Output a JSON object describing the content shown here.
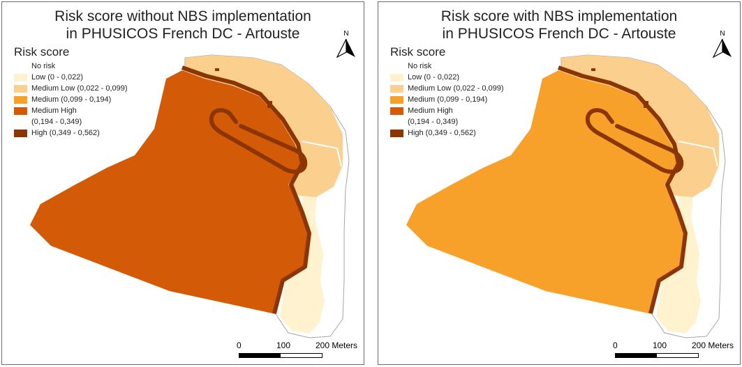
{
  "colors": {
    "no_risk": "#ffffff",
    "low": "#fff3cf",
    "medium_low": "#fbd08e",
    "medium": "#f7a12a",
    "medium_high": "#d35a07",
    "high": "#8b3502",
    "outline": "#a5a5a5"
  },
  "maps": [
    {
      "title_line1": "Risk score without NBS implementation",
      "title_line2": "in PHUSICOS French DC - Artouste",
      "main_class": "medium_high"
    },
    {
      "title_line1": "Risk score with NBS implementation",
      "title_line2": "in PHUSICOS French DC - Artouste",
      "main_class": "medium"
    }
  ],
  "legend": {
    "title": "Risk score",
    "items": [
      {
        "label": "No risk",
        "class": "no_risk"
      },
      {
        "label": "Low (0 - 0,022)",
        "class": "low"
      },
      {
        "label": "Medium Low (0,022 - 0,099)",
        "class": "medium_low"
      },
      {
        "label": "Medium (0,099 - 0,194)",
        "class": "medium"
      },
      {
        "label": "Medium High",
        "class": "medium_high"
      },
      {
        "label": "(0,194 - 0,349)",
        "class": ""
      },
      {
        "label": "High (0,349 - 0,562)",
        "class": "high"
      }
    ]
  },
  "north_arrow": {
    "label": "N",
    "icon": "north-arrow-icon"
  },
  "scale": {
    "labels": [
      "0",
      "100",
      "200 Meters"
    ]
  }
}
